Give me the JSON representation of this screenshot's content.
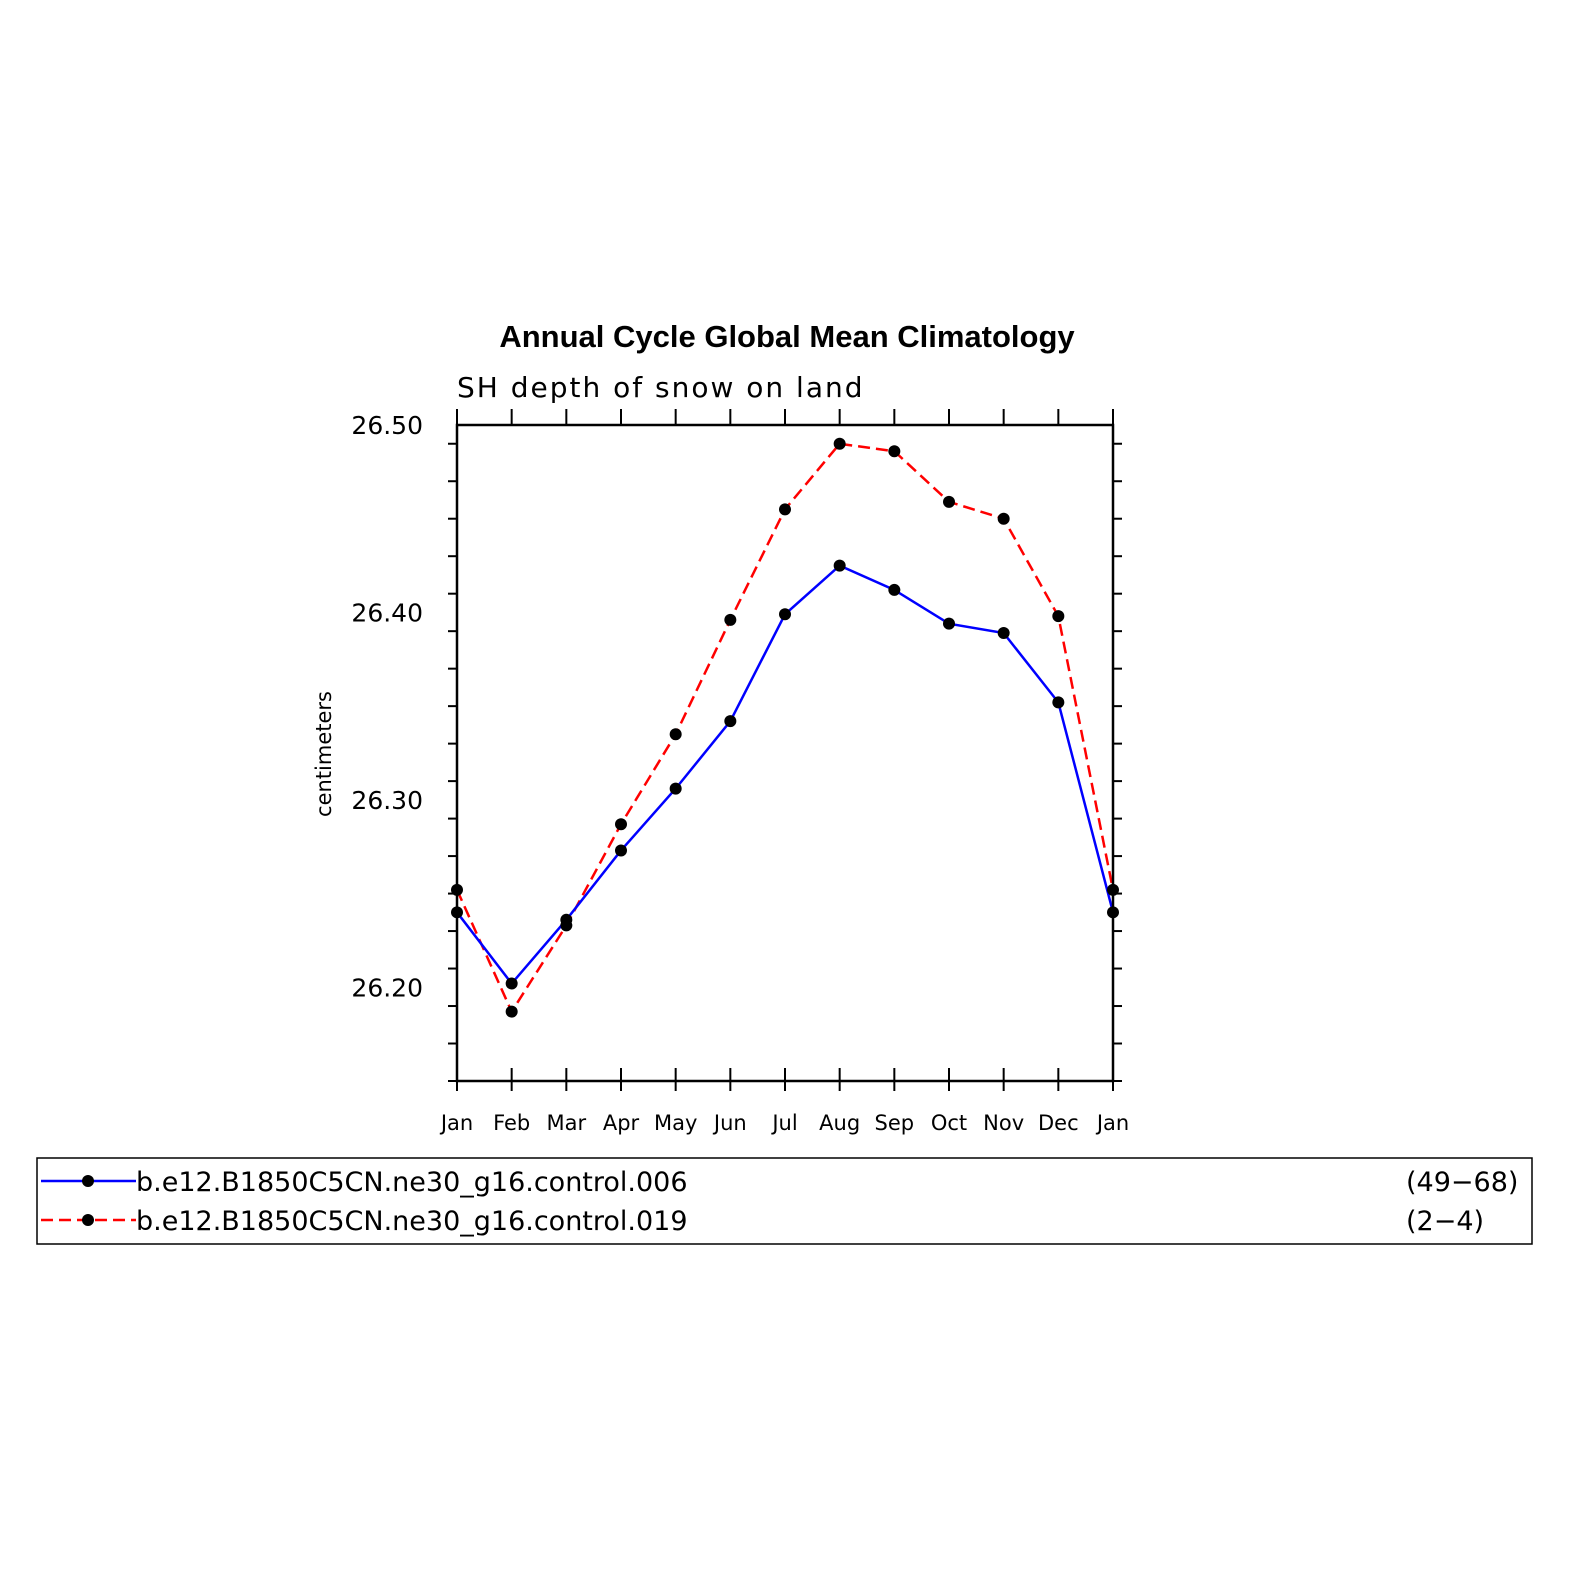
{
  "chart_data": {
    "type": "line",
    "title": "Annual Cycle Global Mean Climatology",
    "subtitle": "SH depth of snow on land",
    "ylabel": "centimeters",
    "xlabel": "",
    "categories": [
      "Jan",
      "Feb",
      "Mar",
      "Apr",
      "May",
      "Jun",
      "Jul",
      "Aug",
      "Sep",
      "Oct",
      "Nov",
      "Dec",
      "Jan"
    ],
    "ylim": [
      26.15,
      26.5
    ],
    "yticks": [
      "26.20",
      "26.30",
      "26.40",
      "26.50"
    ],
    "grid": false,
    "legend_position": "bottom",
    "series": [
      {
        "name": "b.e12.B1850C5CN.ne30_g16.control.006",
        "years": "(49−68)",
        "color": "#0000ff",
        "dash": "solid",
        "values": [
          26.24,
          26.202,
          26.236,
          26.273,
          26.306,
          26.342,
          26.399,
          26.425,
          26.412,
          26.394,
          26.389,
          26.352,
          26.24
        ]
      },
      {
        "name": "b.e12.B1850C5CN.ne30_g16.control.019",
        "years": "(2−4)",
        "color": "#ff0000",
        "dash": "dashed",
        "values": [
          26.252,
          26.187,
          26.233,
          26.287,
          26.335,
          26.396,
          26.455,
          26.49,
          26.486,
          26.459,
          26.45,
          26.398,
          26.252
        ]
      }
    ]
  }
}
